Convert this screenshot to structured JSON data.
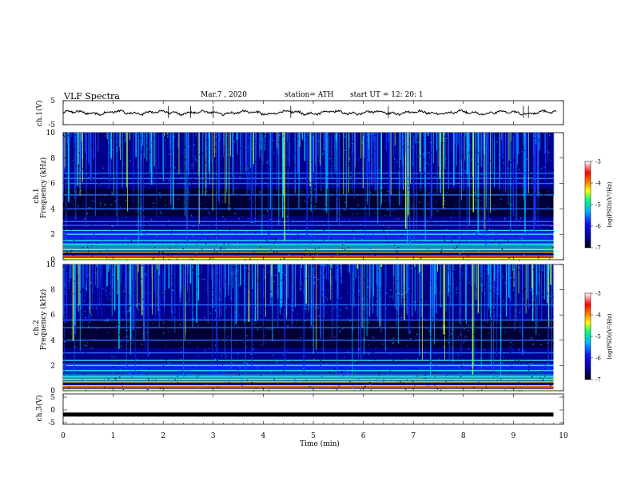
{
  "header": {
    "title": "VLF  Spectra",
    "date": "Mar.7  , 2020",
    "station": "station= ATH",
    "start_ut": "start  UT  =    12: 20: 1"
  },
  "colors": {
    "waveform": "#000000",
    "ch3_band": "#000000",
    "colormap": [
      "#000000",
      "#0000a0",
      "#1010ff",
      "#00b0ff",
      "#00ff80",
      "#ffff00",
      "#ff8000",
      "#ff0000",
      "#ffffff"
    ]
  },
  "chart_data": [
    {
      "type": "line",
      "panel": "ch1-waveform",
      "ylabel": "ch.1(V)",
      "ylim": [
        -5,
        5
      ],
      "yticks": [
        "5",
        "-5"
      ],
      "xlim": [
        0,
        10
      ],
      "series": [
        {
          "values_mean": 0,
          "approx_amplitude": 1,
          "spikes": [
            2.1,
            2.55,
            3.0,
            4.55,
            6.5,
            9.2,
            9.3
          ]
        }
      ]
    },
    {
      "type": "heatmap",
      "panel": "ch1-spectrogram",
      "ylabel": "ch.1\nFrequency (kHz)",
      "ylim": [
        0,
        10
      ],
      "yticks": [
        "0",
        "2",
        "4",
        "6",
        "8",
        "10"
      ],
      "xlim": [
        0,
        9.8
      ],
      "colorbar": {
        "label": "log(PSD)(V²/Hz)",
        "range": [
          -7,
          -3
        ],
        "ticks": [
          "-3",
          "-4",
          "-5",
          "-6",
          "-7"
        ]
      },
      "bands_khz": [
        0.3,
        0.6,
        0.8,
        1.2,
        1.5,
        2.0,
        2.3,
        2.7,
        3.0,
        4.0,
        5.1,
        6.0,
        6.4,
        6.8
      ]
    },
    {
      "type": "heatmap",
      "panel": "ch2-spectrogram",
      "ylabel": "ch.2\nFrequency (kHz)",
      "ylim": [
        0,
        10
      ],
      "yticks": [
        "0",
        "2",
        "4",
        "6",
        "8",
        "10"
      ],
      "xlim": [
        0,
        9.8
      ],
      "colorbar": {
        "label": "log(PSD)(V²/Hz)",
        "range": [
          -7,
          -3
        ],
        "ticks": [
          "-3",
          "-4",
          "-5",
          "-6",
          "-7"
        ]
      },
      "bands_khz": [
        0.4,
        0.7,
        0.9,
        1.1,
        1.6,
        2.0,
        2.4,
        3.0,
        4.0,
        5.0,
        5.6,
        6.8
      ]
    },
    {
      "type": "line",
      "panel": "ch3-waveform",
      "ylabel": "ch.3(V)",
      "ylim": [
        -5,
        5
      ],
      "yticks": [
        "5",
        "0",
        "-5"
      ],
      "xlim": [
        0,
        9.8
      ],
      "series": [
        {
          "constant_value": -1.8
        }
      ]
    }
  ],
  "xaxis": {
    "label": "Time  (min)",
    "ticks": [
      "0",
      "1",
      "2",
      "3",
      "4",
      "5",
      "6",
      "7",
      "8",
      "9",
      "10"
    ],
    "range": [
      0,
      10
    ]
  }
}
